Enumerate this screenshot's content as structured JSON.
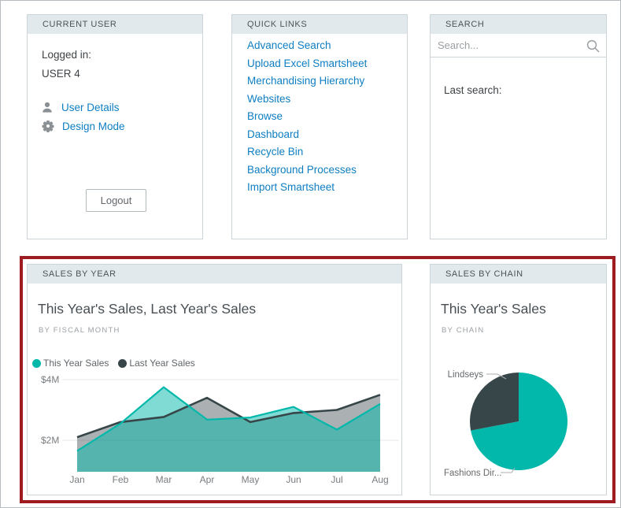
{
  "colors": {
    "teal": "#01b8aa",
    "dark": "#374649",
    "link_blue": "#0e7ec2",
    "card_header_bg": "#e2e9ed",
    "card_border": "#ccd4d8",
    "highlight_border": "#9e1c20"
  },
  "current_user": {
    "header": "CURRENT USER",
    "logged_in_label": "Logged in:",
    "username": "USER 4",
    "links": [
      {
        "icon": "person-icon",
        "label": "User Details"
      },
      {
        "icon": "gear-icon",
        "label": "Design Mode"
      }
    ],
    "logout_label": "Logout"
  },
  "quick_links": {
    "header": "QUICK LINKS",
    "links": [
      "Advanced Search",
      "Upload Excel Smartsheet",
      "Merchandising Hierarchy",
      "Websites",
      "Browse",
      "Dashboard",
      "Recycle Bin",
      "Background Processes",
      "Import Smartsheet"
    ]
  },
  "search": {
    "header": "SEARCH",
    "placeholder": "Search...",
    "last_search_label": "Last search:"
  },
  "sales_by_year": {
    "header": "SALES BY YEAR"
  },
  "sales_by_chain": {
    "header": "SALES BY CHAIN"
  },
  "chart_data": [
    {
      "type": "area",
      "title": "This Year's Sales, Last Year's Sales",
      "subtitle": "BY FISCAL MONTH",
      "categories": [
        "Jan",
        "Feb",
        "Mar",
        "Apr",
        "May",
        "Jun",
        "Jul",
        "Aug"
      ],
      "series": [
        {
          "name": "This Year Sales",
          "color": "#01b8aa",
          "values": [
            1.65,
            2.55,
            3.75,
            2.68,
            2.75,
            3.1,
            2.35,
            3.2
          ]
        },
        {
          "name": "Last Year Sales",
          "color": "#374649",
          "values": [
            2.1,
            2.6,
            2.77,
            3.4,
            2.6,
            2.9,
            3.0,
            3.5
          ]
        }
      ],
      "units": "$M",
      "y_ticks": [
        {
          "label": "$4M",
          "value": 4
        },
        {
          "label": "$2M",
          "value": 2
        }
      ],
      "ylim": [
        1,
        4.2
      ],
      "grid": true,
      "legend_position": "top"
    },
    {
      "type": "pie",
      "title": "This Year's Sales",
      "subtitle": "BY CHAIN",
      "slices": [
        {
          "label": "Fashions Dir...",
          "value": 72,
          "color": "#01b8aa"
        },
        {
          "label": "Lindseys",
          "value": 28,
          "color": "#374649"
        }
      ],
      "values_are": "percent_share"
    }
  ]
}
